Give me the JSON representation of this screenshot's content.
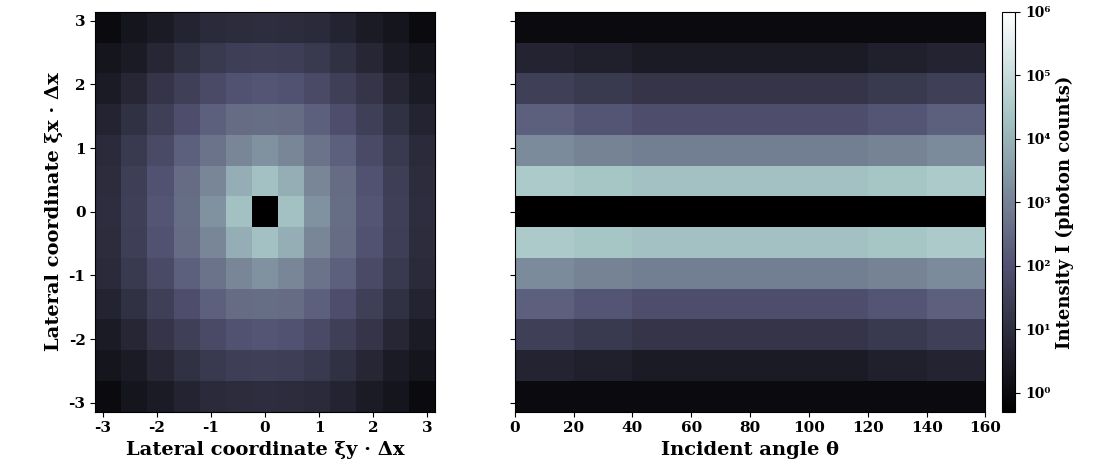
{
  "chart_data": [
    {
      "type": "heatmap",
      "x_label": "Lateral coordinate ξy · Δx",
      "y_label": "Lateral coordinate ξx · Δx",
      "xlim": [
        -3.14,
        3.14
      ],
      "ylim": [
        -3.14,
        3.14
      ],
      "xticks": [
        -3,
        -2,
        -1,
        0,
        1,
        2,
        3
      ],
      "yticks": [
        -3,
        -2,
        -1,
        0,
        1,
        2,
        3
      ],
      "color": "bone",
      "log": true,
      "cell_range": [
        0.5,
        1000000
      ],
      "x_edges": [
        -3.14,
        -2.657,
        -2.174,
        -1.691,
        -1.208,
        -0.725,
        -0.242,
        0.242,
        0.725,
        1.208,
        1.691,
        2.174,
        2.657,
        3.14
      ],
      "y_edges": [
        -3.14,
        -2.657,
        -2.174,
        -1.691,
        -1.208,
        -0.725,
        -0.242,
        0.242,
        0.725,
        1.208,
        1.691,
        2.174,
        2.657,
        3.14
      ],
      "cells": [
        [
          1,
          2,
          3,
          5,
          8,
          9,
          10,
          9,
          8,
          5,
          3,
          2,
          1
        ],
        [
          2,
          3,
          6,
          12,
          20,
          28,
          30,
          28,
          20,
          12,
          6,
          3,
          2
        ],
        [
          3,
          6,
          15,
          30,
          60,
          100,
          120,
          100,
          60,
          30,
          15,
          6,
          3
        ],
        [
          5,
          12,
          30,
          80,
          200,
          350,
          400,
          350,
          200,
          80,
          30,
          12,
          5
        ],
        [
          8,
          20,
          60,
          200,
          500,
          1200,
          2000,
          1200,
          500,
          200,
          60,
          20,
          8
        ],
        [
          9,
          28,
          100,
          350,
          1200,
          8000,
          20000,
          8000,
          1200,
          350,
          100,
          28,
          9
        ],
        [
          10,
          30,
          120,
          400,
          2000,
          20000,
          0.5,
          20000,
          2000,
          400,
          120,
          30,
          10
        ],
        [
          9,
          28,
          100,
          350,
          1200,
          8000,
          20000,
          8000,
          1200,
          350,
          100,
          28,
          9
        ],
        [
          8,
          20,
          60,
          200,
          500,
          1200,
          2000,
          1200,
          500,
          200,
          60,
          20,
          8
        ],
        [
          5,
          12,
          30,
          80,
          200,
          350,
          400,
          350,
          200,
          80,
          30,
          12,
          5
        ],
        [
          3,
          6,
          15,
          30,
          60,
          100,
          120,
          100,
          60,
          30,
          15,
          6,
          3
        ],
        [
          2,
          3,
          6,
          12,
          20,
          28,
          30,
          28,
          20,
          12,
          6,
          3,
          2
        ],
        [
          1,
          2,
          3,
          5,
          8,
          9,
          10,
          9,
          8,
          5,
          3,
          2,
          1
        ]
      ]
    },
    {
      "type": "heatmap",
      "x_label": "Incident angle θ",
      "xlim": [
        0,
        160
      ],
      "ylim": [
        -3.14,
        3.14
      ],
      "xticks": [
        0,
        20,
        40,
        60,
        80,
        100,
        120,
        140,
        160
      ],
      "yticks": [
        -3,
        -2,
        -1,
        0,
        1,
        2,
        3
      ],
      "tick_labels": "x",
      "color": "bone",
      "log": true,
      "cell_range": [
        0.5,
        1000000
      ],
      "x_edges": [
        0,
        20,
        40,
        60,
        80,
        100,
        120,
        140,
        160
      ],
      "y_edges": [
        -3.14,
        -2.657,
        -2.174,
        -1.691,
        -1.208,
        -0.725,
        -0.242,
        0.242,
        0.725,
        1.208,
        1.691,
        2.174,
        2.657,
        3.14
      ],
      "cells": [
        [
          1,
          1,
          1,
          1,
          1,
          1,
          1,
          1
        ],
        [
          5,
          4,
          3,
          3,
          3,
          3,
          4,
          5
        ],
        [
          30,
          20,
          15,
          15,
          15,
          15,
          20,
          30
        ],
        [
          200,
          120,
          80,
          80,
          80,
          80,
          120,
          200
        ],
        [
          1500,
          1000,
          800,
          800,
          800,
          800,
          1000,
          1500
        ],
        [
          30000,
          25000,
          20000,
          20000,
          20000,
          20000,
          25000,
          30000
        ],
        [
          0.5,
          0.5,
          0.5,
          0.5,
          0.5,
          0.5,
          0.5,
          0.5
        ],
        [
          30000,
          25000,
          20000,
          20000,
          20000,
          20000,
          25000,
          30000
        ],
        [
          1500,
          1000,
          800,
          800,
          800,
          800,
          1000,
          1500
        ],
        [
          200,
          120,
          80,
          80,
          80,
          80,
          120,
          200
        ],
        [
          30,
          20,
          15,
          15,
          15,
          15,
          20,
          30
        ],
        [
          5,
          4,
          3,
          3,
          3,
          3,
          4,
          5
        ],
        [
          1,
          1,
          1,
          1,
          1,
          1,
          1,
          1
        ]
      ],
      "colorbar": {
        "label": "Intensity I (photon counts)",
        "ticks": [
          {
            "value": 1,
            "label": "10⁰"
          },
          {
            "value": 10,
            "label": "10¹"
          },
          {
            "value": 100,
            "label": "10²"
          },
          {
            "value": 1000,
            "label": "10³"
          },
          {
            "value": 10000,
            "label": "10⁴"
          },
          {
            "value": 100000,
            "label": "10⁵"
          },
          {
            "value": 1000000,
            "label": "10⁶"
          }
        ]
      }
    }
  ]
}
